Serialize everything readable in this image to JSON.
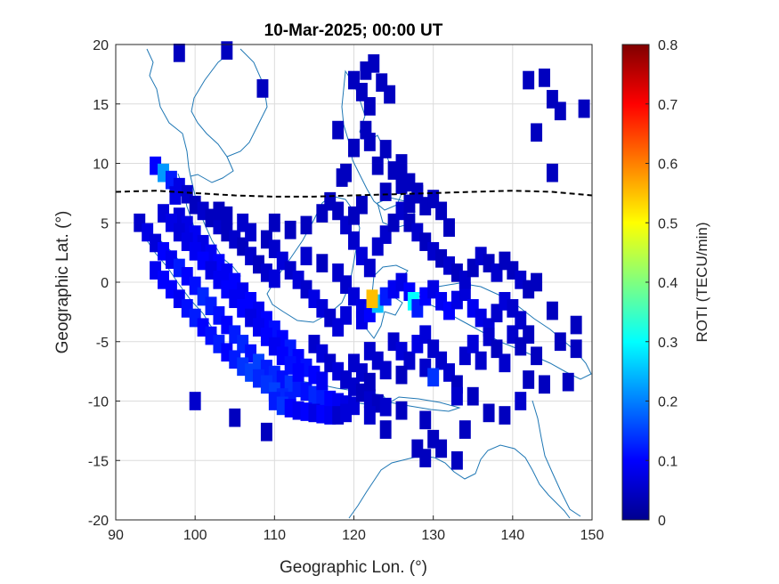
{
  "chart_data": {
    "type": "heatmap",
    "title": "10-Mar-2025; 00:00 UT",
    "xlabel": "Geographic Lon. (°)",
    "ylabel": "Geographic Lat. (°)",
    "xlim": [
      90,
      150
    ],
    "ylim": [
      -20,
      20
    ],
    "xticks": [
      90,
      100,
      110,
      120,
      130,
      140,
      150
    ],
    "yticks": [
      20,
      15,
      10,
      5,
      0,
      -5,
      -10,
      -15,
      -20
    ],
    "grid": true,
    "colorbar": {
      "label": "ROTI (TECU/min)",
      "colormap": "jet",
      "clim": [
        0,
        0.8
      ],
      "ticks": [
        0,
        0.1,
        0.2,
        0.3,
        0.4,
        0.5,
        0.6,
        0.7,
        0.8
      ]
    },
    "dip_equator": {
      "style": "dashed-black",
      "points": [
        [
          90,
          7.6
        ],
        [
          95,
          7.7
        ],
        [
          100,
          7.5
        ],
        [
          105,
          7.3
        ],
        [
          110,
          7.2
        ],
        [
          115,
          7.2
        ],
        [
          120,
          7.3
        ],
        [
          125,
          7.4
        ],
        [
          130,
          7.5
        ],
        [
          135,
          7.6
        ],
        [
          140,
          7.7
        ],
        [
          145,
          7.6
        ],
        [
          150,
          7.3
        ]
      ]
    },
    "coastline_color": "#1f77b4",
    "roti_cells": [
      [
        98,
        19.3,
        0.05
      ],
      [
        104,
        19.5,
        0.05
      ],
      [
        108.5,
        16.3,
        0.05
      ],
      [
        95,
        9.8,
        0.1
      ],
      [
        96,
        9.2,
        0.22
      ],
      [
        97,
        8.6,
        0.12
      ],
      [
        98,
        8,
        0.08
      ],
      [
        99,
        7.4,
        0.06
      ],
      [
        97.5,
        7.3,
        0.08
      ],
      [
        100,
        6.5,
        0.05
      ],
      [
        101,
        6,
        0.06
      ],
      [
        102,
        5.4,
        0.05
      ],
      [
        103,
        4.8,
        0.06
      ],
      [
        104,
        4.2,
        0.05
      ],
      [
        105,
        3.6,
        0.06
      ],
      [
        106,
        3,
        0.05
      ],
      [
        107,
        2.2,
        0.06
      ],
      [
        108,
        1.5,
        0.05
      ],
      [
        109,
        0.8,
        0.06
      ],
      [
        110,
        0.3,
        0.07
      ],
      [
        93,
        5,
        0.06
      ],
      [
        94,
        4.2,
        0.08
      ],
      [
        95,
        3.3,
        0.07
      ],
      [
        96,
        2.6,
        0.1
      ],
      [
        97,
        1.9,
        0.09
      ],
      [
        98,
        1.2,
        0.12
      ],
      [
        99,
        0.5,
        0.1
      ],
      [
        100,
        -0.3,
        0.11
      ],
      [
        101,
        -1.2,
        0.13
      ],
      [
        102,
        -2,
        0.12
      ],
      [
        103,
        -2.8,
        0.11
      ],
      [
        104,
        -3.6,
        0.1
      ],
      [
        105,
        -4.4,
        0.12
      ],
      [
        106,
        -5.2,
        0.13
      ],
      [
        107,
        -6,
        0.11
      ],
      [
        108,
        -6.8,
        0.15
      ],
      [
        109,
        -7.3,
        0.12
      ],
      [
        110,
        -7.8,
        0.13
      ],
      [
        111,
        -8.2,
        0.11
      ],
      [
        112,
        -8.6,
        0.14
      ],
      [
        113,
        -8.9,
        0.12
      ],
      [
        114,
        -9.2,
        0.11
      ],
      [
        115,
        -9.5,
        0.13
      ],
      [
        116,
        -9.7,
        0.12
      ],
      [
        117,
        -9.9,
        0.1
      ],
      [
        118,
        -10.1,
        0.09
      ],
      [
        119,
        -10.3,
        0.08
      ],
      [
        120,
        -10.4,
        0.07
      ],
      [
        95,
        1,
        0.09
      ],
      [
        96,
        0.2,
        0.1
      ],
      [
        97,
        -0.6,
        0.1
      ],
      [
        98,
        -1.4,
        0.09
      ],
      [
        99,
        -2.2,
        0.11
      ],
      [
        100,
        -3,
        0.12
      ],
      [
        101,
        -3.8,
        0.1
      ],
      [
        102,
        -4.5,
        0.11
      ],
      [
        103,
        -5.2,
        0.12
      ],
      [
        104,
        -5.9,
        0.1
      ],
      [
        105,
        -6.5,
        0.12
      ],
      [
        106,
        -7.1,
        0.14
      ],
      [
        107,
        -7.6,
        0.15
      ],
      [
        108,
        -8.1,
        0.13
      ],
      [
        109,
        -8.6,
        0.14
      ],
      [
        110,
        -9.2,
        0.15
      ],
      [
        111,
        -9.7,
        0.13
      ],
      [
        112,
        -10,
        0.12
      ],
      [
        98,
        5.5,
        0.07
      ],
      [
        99,
        4.8,
        0.08
      ],
      [
        100,
        4,
        0.09
      ],
      [
        101,
        3.2,
        0.08
      ],
      [
        102,
        2.4,
        0.09
      ],
      [
        103,
        1.6,
        0.1
      ],
      [
        104,
        0.8,
        0.09
      ],
      [
        105,
        0,
        0.1
      ],
      [
        106,
        -0.8,
        0.09
      ],
      [
        107,
        -1.6,
        0.1
      ],
      [
        108,
        -2.4,
        0.09
      ],
      [
        109,
        -3.2,
        0.1
      ],
      [
        110,
        -4,
        0.11
      ],
      [
        111,
        -4.8,
        0.1
      ],
      [
        112,
        -5.6,
        0.12
      ],
      [
        113,
        -6.4,
        0.1
      ],
      [
        114,
        -7.2,
        0.11
      ],
      [
        115,
        -7.8,
        0.1
      ],
      [
        116,
        -8.3,
        0.09
      ],
      [
        96,
        5.8,
        0.07
      ],
      [
        97,
        5,
        0.08
      ],
      [
        98,
        4.2,
        0.07
      ],
      [
        99,
        3.4,
        0.08
      ],
      [
        100,
        2.6,
        0.09
      ],
      [
        101,
        1.8,
        0.1
      ],
      [
        102,
        1,
        0.08
      ],
      [
        103,
        0.2,
        0.09
      ],
      [
        104,
        -0.6,
        0.1
      ],
      [
        105,
        -1.4,
        0.09
      ],
      [
        106,
        -2.2,
        0.1
      ],
      [
        107,
        -3,
        0.08
      ],
      [
        108,
        -3.8,
        0.09
      ],
      [
        109,
        -4.6,
        0.1
      ],
      [
        110,
        -5.4,
        0.09
      ],
      [
        111,
        -6.2,
        0.1
      ],
      [
        112,
        -7,
        0.11
      ],
      [
        113,
        -7.6,
        0.1
      ],
      [
        103,
        6,
        0.05
      ],
      [
        104,
        5.6,
        0.05
      ],
      [
        106,
        5,
        0.06
      ],
      [
        107,
        4.2,
        0.06
      ],
      [
        109,
        3.6,
        0.05
      ],
      [
        110,
        2.8,
        0.06
      ],
      [
        111,
        1.8,
        0.07
      ],
      [
        112,
        1,
        0.06
      ],
      [
        113,
        0.2,
        0.07
      ],
      [
        114,
        -0.6,
        0.06
      ],
      [
        115,
        -1.4,
        0.08
      ],
      [
        116,
        -2.2,
        0.07
      ],
      [
        117,
        -3,
        0.06
      ],
      [
        118,
        -3.8,
        0.07
      ],
      [
        114,
        2.2,
        0.06
      ],
      [
        116,
        1.6,
        0.05
      ],
      [
        118,
        0.8,
        0.06
      ],
      [
        110,
        5,
        0.05
      ],
      [
        112,
        4.4,
        0.05
      ],
      [
        114,
        4.8,
        0.05
      ],
      [
        116,
        5.8,
        0.05
      ],
      [
        117,
        6.8,
        0.05
      ],
      [
        118,
        6,
        0.05
      ],
      [
        119,
        4.8,
        0.06
      ],
      [
        120,
        5.6,
        0.05
      ],
      [
        121,
        6.5,
        0.05
      ],
      [
        120,
        3.5,
        0.06
      ],
      [
        121,
        2.2,
        0.07
      ],
      [
        122,
        1.2,
        0.06
      ],
      [
        119,
        -0.2,
        0.06
      ],
      [
        120,
        -1.2,
        0.07
      ],
      [
        121,
        -2.2,
        0.08
      ],
      [
        119,
        -2.8,
        0.07
      ],
      [
        115,
        -5.2,
        0.06
      ],
      [
        116,
        -6,
        0.07
      ],
      [
        117,
        -6.8,
        0.06
      ],
      [
        118,
        -7.5,
        0.07
      ],
      [
        119,
        -8.2,
        0.06
      ],
      [
        120,
        -8.8,
        0.06
      ],
      [
        121,
        -9.3,
        0.05
      ],
      [
        122,
        -9.8,
        0.06
      ],
      [
        123,
        -10.2,
        0.05
      ],
      [
        124,
        -10.5,
        0.06
      ],
      [
        121,
        -3.2,
        0.08
      ],
      [
        122,
        -2.6,
        0.1
      ],
      [
        123,
        -1.8,
        0.25
      ],
      [
        122.3,
        -1.4,
        0.55
      ],
      [
        124,
        -1.2,
        0.12
      ],
      [
        125,
        -0.6,
        0.09
      ],
      [
        126,
        0,
        0.08
      ],
      [
        127,
        -0.8,
        0.1
      ],
      [
        127.5,
        -1.6,
        0.3
      ],
      [
        128,
        -2.2,
        0.12
      ],
      [
        129,
        -1.2,
        0.1
      ],
      [
        130,
        -0.6,
        0.08
      ],
      [
        131,
        -1.6,
        0.09
      ],
      [
        132,
        -2.4,
        0.1
      ],
      [
        133,
        -1.5,
        0.08
      ],
      [
        134,
        -0.8,
        0.07
      ],
      [
        135,
        -2.2,
        0.09
      ],
      [
        136,
        -3,
        0.08
      ],
      [
        137,
        -3.8,
        0.07
      ],
      [
        138,
        -2.6,
        0.06
      ],
      [
        139,
        -1.6,
        0.07
      ],
      [
        140,
        -2.2,
        0.06
      ],
      [
        141,
        -3.2,
        0.06
      ],
      [
        123,
        3,
        0.06
      ],
      [
        124,
        4,
        0.06
      ],
      [
        125,
        5,
        0.05
      ],
      [
        126,
        6,
        0.06
      ],
      [
        127,
        5,
        0.05
      ],
      [
        128,
        4.2,
        0.06
      ],
      [
        129,
        3.4,
        0.05
      ],
      [
        130,
        2.6,
        0.06
      ],
      [
        131,
        2,
        0.05
      ],
      [
        132,
        1.4,
        0.06
      ],
      [
        133,
        0.8,
        0.05
      ],
      [
        134,
        0.2,
        0.06
      ],
      [
        135,
        1.2,
        0.05
      ],
      [
        136,
        2.2,
        0.06
      ],
      [
        137,
        1.6,
        0.05
      ],
      [
        138,
        0.8,
        0.06
      ],
      [
        139,
        1.8,
        0.05
      ],
      [
        140,
        1,
        0.05
      ],
      [
        141,
        0.2,
        0.06
      ],
      [
        142,
        -0.6,
        0.05
      ],
      [
        143,
        0,
        0.05
      ],
      [
        124,
        7.6,
        0.05
      ],
      [
        126,
        8.2,
        0.05
      ],
      [
        128,
        7.4,
        0.05
      ],
      [
        129,
        6.4,
        0.05
      ],
      [
        127,
        6.6,
        0.05
      ],
      [
        130,
        7,
        0.05
      ],
      [
        131,
        6,
        0.05
      ],
      [
        132,
        4.6,
        0.05
      ],
      [
        122,
        -5.8,
        0.06
      ],
      [
        123,
        -6.6,
        0.06
      ],
      [
        124,
        -7.4,
        0.06
      ],
      [
        125,
        -5,
        0.06
      ],
      [
        126,
        -5.8,
        0.07
      ],
      [
        127,
        -6.6,
        0.06
      ],
      [
        128,
        -5.2,
        0.08
      ],
      [
        129,
        -4.4,
        0.07
      ],
      [
        130,
        -5.6,
        0.06
      ],
      [
        131,
        -6.6,
        0.06
      ],
      [
        132,
        -7.6,
        0.06
      ],
      [
        133,
        -8.6,
        0.05
      ],
      [
        134,
        -6.2,
        0.06
      ],
      [
        135,
        -5.2,
        0.07
      ],
      [
        136,
        -6.6,
        0.06
      ],
      [
        137,
        -4.6,
        0.06
      ],
      [
        138,
        -5.6,
        0.05
      ],
      [
        139,
        -6.8,
        0.06
      ],
      [
        140,
        -4.4,
        0.06
      ],
      [
        141,
        -5.4,
        0.05
      ],
      [
        142,
        -4.4,
        0.05
      ],
      [
        143,
        -6.2,
        0.05
      ],
      [
        120,
        -6.8,
        0.06
      ],
      [
        121,
        -7.6,
        0.06
      ],
      [
        122,
        -8.4,
        0.05
      ],
      [
        126,
        -7.8,
        0.05
      ],
      [
        129,
        -7.2,
        0.06
      ],
      [
        130,
        -8,
        0.14
      ],
      [
        133,
        -9.6,
        0.06
      ],
      [
        135,
        -9.6,
        0.05
      ],
      [
        137,
        -11,
        0.05
      ],
      [
        139,
        -11.2,
        0.05
      ],
      [
        141,
        -10,
        0.06
      ],
      [
        142,
        -8.2,
        0.05
      ],
      [
        144,
        -8.6,
        0.05
      ],
      [
        146,
        -5,
        0.05
      ],
      [
        145,
        -2.4,
        0.05
      ],
      [
        148,
        -3.6,
        0.05
      ],
      [
        148,
        -5.6,
        0.05
      ],
      [
        147,
        -8.4,
        0.05
      ],
      [
        122,
        -11.2,
        0.06
      ],
      [
        124,
        -12.4,
        0.05
      ],
      [
        126,
        -10.8,
        0.05
      ],
      [
        129,
        -11.6,
        0.05
      ],
      [
        130,
        -13.2,
        0.05
      ],
      [
        131,
        -14,
        0.05
      ],
      [
        133,
        -15,
        0.05
      ],
      [
        134,
        -12.4,
        0.05
      ],
      [
        128,
        -14,
        0.05
      ],
      [
        129,
        -14.8,
        0.05
      ],
      [
        100,
        -10,
        0.06
      ],
      [
        105,
        -11.4,
        0.05
      ],
      [
        109,
        -12.6,
        0.05
      ],
      [
        110,
        -10,
        0.12
      ],
      [
        111,
        -10.4,
        0.14
      ],
      [
        112,
        -10.6,
        0.1
      ],
      [
        113,
        -10.8,
        0.09
      ],
      [
        114,
        -10.9,
        0.1
      ],
      [
        115,
        -11,
        0.08
      ],
      [
        116,
        -11.1,
        0.1
      ],
      [
        117,
        -11.2,
        0.09
      ],
      [
        118,
        -11.2,
        0.06
      ],
      [
        119,
        -11,
        0.07
      ],
      [
        118.5,
        8.8,
        0.05
      ],
      [
        120,
        11.3,
        0.05
      ],
      [
        121.5,
        12.8,
        0.05
      ],
      [
        122,
        14.8,
        0.05
      ],
      [
        121,
        16,
        0.05
      ],
      [
        120,
        17,
        0.05
      ],
      [
        121.5,
        17.8,
        0.05
      ],
      [
        122.5,
        18.4,
        0.05
      ],
      [
        123.5,
        16.8,
        0.05
      ],
      [
        124.5,
        15.8,
        0.05
      ],
      [
        122,
        11.8,
        0.05
      ],
      [
        123,
        9.8,
        0.05
      ],
      [
        124,
        11.2,
        0.05
      ],
      [
        125,
        9.4,
        0.05
      ],
      [
        126,
        10,
        0.05
      ],
      [
        126,
        9,
        0.05
      ],
      [
        127,
        8.4,
        0.05
      ],
      [
        128,
        7.6,
        0.05
      ],
      [
        118,
        12.8,
        0.05
      ],
      [
        119,
        9.2,
        0.05
      ],
      [
        142,
        17,
        0.05
      ],
      [
        144,
        17.2,
        0.05
      ],
      [
        145,
        15.4,
        0.05
      ],
      [
        146,
        14.4,
        0.05
      ],
      [
        149,
        14.6,
        0.05
      ],
      [
        143,
        12.6,
        0.05
      ],
      [
        145,
        9.2,
        0.05
      ]
    ]
  }
}
